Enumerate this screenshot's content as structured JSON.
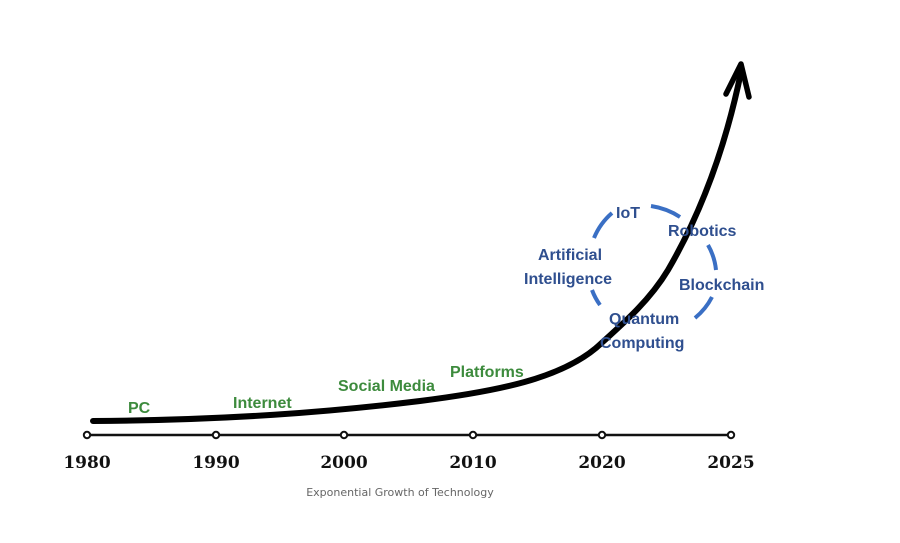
{
  "timeline": {
    "years": [
      "1980",
      "1990",
      "2000",
      "2010",
      "2020",
      "2025"
    ]
  },
  "eras": [
    "PC",
    "Internet",
    "Social Media",
    "Platforms"
  ],
  "emerging_tech": {
    "iot": "IoT",
    "robotics": "Robotics",
    "ai_line1": "Artificial",
    "ai_line2": "Intelligence",
    "blockchain": "Blockchain",
    "quantum_line1": "Quantum",
    "quantum_line2": "Computing"
  },
  "caption": "Exponential Growth of Technology",
  "colors": {
    "era_text": "#3d8b3d",
    "tech_text": "#2f4f8f",
    "circle": "#3a6fc4",
    "curve": "#000000"
  }
}
